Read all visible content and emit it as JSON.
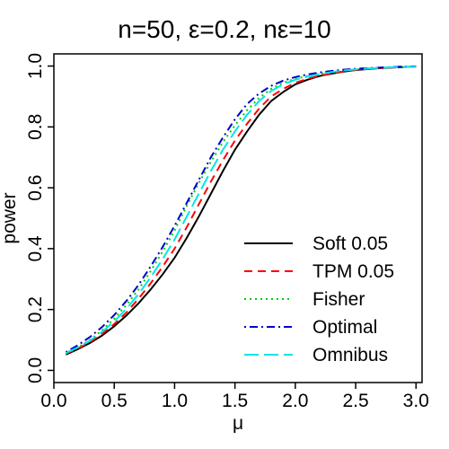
{
  "chart_data": {
    "type": "line",
    "title": "n=50, ε=0.2, nε=10",
    "xlabel": "μ",
    "ylabel": "power",
    "xlim": [
      0,
      3.05
    ],
    "ylim": [
      -0.04,
      1.04
    ],
    "xticks": [
      0.0,
      0.5,
      1.0,
      1.5,
      2.0,
      2.5,
      3.0
    ],
    "xtick_labels": [
      "0.0",
      "0.5",
      "1.0",
      "1.5",
      "2.0",
      "2.5",
      "3.0"
    ],
    "yticks": [
      0.0,
      0.2,
      0.4,
      0.6,
      0.8,
      1.0
    ],
    "ytick_labels": [
      "0.0",
      "0.2",
      "0.4",
      "0.6",
      "0.8",
      "1.0"
    ],
    "grid": false,
    "legend_position": "bottom-right",
    "x": [
      0.1,
      0.2,
      0.3,
      0.4,
      0.5,
      0.6,
      0.7,
      0.8,
      0.9,
      1.0,
      1.1,
      1.2,
      1.3,
      1.4,
      1.5,
      1.6,
      1.7,
      1.8,
      1.9,
      2.0,
      2.1,
      2.2,
      2.3,
      2.4,
      2.5,
      2.6,
      2.7,
      2.8,
      2.9,
      3.0
    ],
    "series": [
      {
        "name": "Soft 0.05",
        "color": "#000000",
        "dash": "solid",
        "values": [
          0.052,
          0.07,
          0.09,
          0.115,
          0.145,
          0.18,
          0.22,
          0.265,
          0.315,
          0.37,
          0.435,
          0.505,
          0.58,
          0.655,
          0.725,
          0.785,
          0.84,
          0.885,
          0.915,
          0.94,
          0.955,
          0.967,
          0.975,
          0.982,
          0.987,
          0.99,
          0.993,
          0.995,
          0.997,
          0.998
        ]
      },
      {
        "name": "TPM 0.05",
        "color": "#ff0000",
        "dash": "dashed",
        "values": [
          0.055,
          0.072,
          0.093,
          0.12,
          0.152,
          0.19,
          0.235,
          0.285,
          0.34,
          0.4,
          0.47,
          0.545,
          0.62,
          0.69,
          0.755,
          0.81,
          0.86,
          0.9,
          0.925,
          0.945,
          0.958,
          0.968,
          0.976,
          0.982,
          0.987,
          0.99,
          0.993,
          0.995,
          0.997,
          0.998
        ]
      },
      {
        "name": "Fisher",
        "color": "#00cd00",
        "dash": "dotted",
        "values": [
          0.055,
          0.075,
          0.1,
          0.132,
          0.17,
          0.215,
          0.265,
          0.325,
          0.39,
          0.46,
          0.54,
          0.615,
          0.685,
          0.75,
          0.805,
          0.855,
          0.895,
          0.925,
          0.945,
          0.958,
          0.967,
          0.974,
          0.98,
          0.985,
          0.989,
          0.992,
          0.994,
          0.996,
          0.997,
          0.998
        ]
      },
      {
        "name": "Optimal",
        "color": "#0000cd",
        "dash": "dotdash",
        "values": [
          0.06,
          0.083,
          0.11,
          0.143,
          0.182,
          0.228,
          0.28,
          0.34,
          0.405,
          0.475,
          0.55,
          0.625,
          0.7,
          0.765,
          0.825,
          0.875,
          0.91,
          0.935,
          0.952,
          0.964,
          0.972,
          0.979,
          0.984,
          0.988,
          0.991,
          0.993,
          0.995,
          0.997,
          0.998,
          0.999
        ]
      },
      {
        "name": "Omnibus",
        "color": "#00e5ee",
        "dash": "longdash",
        "values": [
          0.057,
          0.076,
          0.098,
          0.127,
          0.161,
          0.202,
          0.25,
          0.305,
          0.365,
          0.43,
          0.505,
          0.58,
          0.655,
          0.725,
          0.785,
          0.84,
          0.885,
          0.918,
          0.94,
          0.955,
          0.965,
          0.973,
          0.98,
          0.985,
          0.989,
          0.992,
          0.994,
          0.996,
          0.997,
          0.998
        ]
      }
    ]
  }
}
